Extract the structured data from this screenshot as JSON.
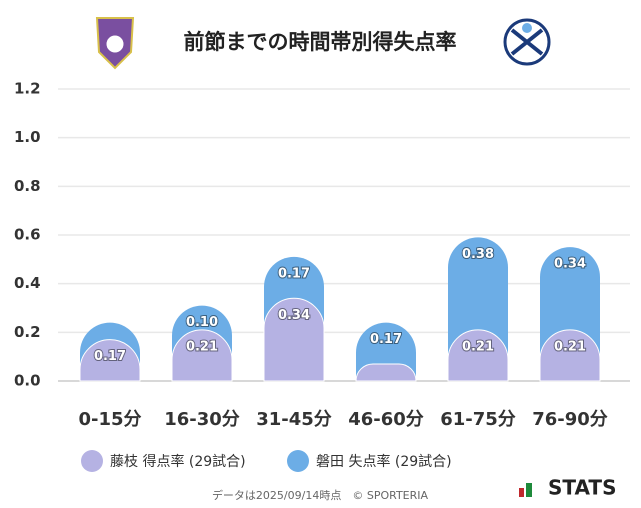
{
  "chart_data": {
    "type": "stacked_bar",
    "title": "前節までの時間帯別得失点率",
    "categories": [
      "0-15分",
      "16-30分",
      "31-45分",
      "46-60分",
      "61-75分",
      "76-90分"
    ],
    "series": [
      {
        "name": "藤枝 得点率 (29試合)",
        "color": "#b5b2e3",
        "values": [
          0.17,
          0.21,
          0.34,
          0.07,
          0.21,
          0.21
        ],
        "value_labels": [
          "0.17",
          "0.21",
          "0.34",
          null,
          "0.21",
          "0.21"
        ]
      },
      {
        "name": "磐田 失点率 (29試合)",
        "color": "#6cade6",
        "values": [
          0.07,
          0.1,
          0.17,
          0.17,
          0.38,
          0.34
        ],
        "value_labels": [
          null,
          "0.10",
          "0.17",
          "0.17",
          "0.38",
          "0.34"
        ]
      }
    ],
    "ylim": [
      0,
      1.2
    ],
    "yticks": [
      {
        "value": 0,
        "label": "0.0"
      },
      0.2,
      0.4,
      0.6,
      0.8,
      {
        "value": 1,
        "label": "1.0"
      },
      1.2
    ],
    "grid": true,
    "caption": "データは2025/09/14時点　© SPORTERIA",
    "brand": "STATS"
  }
}
